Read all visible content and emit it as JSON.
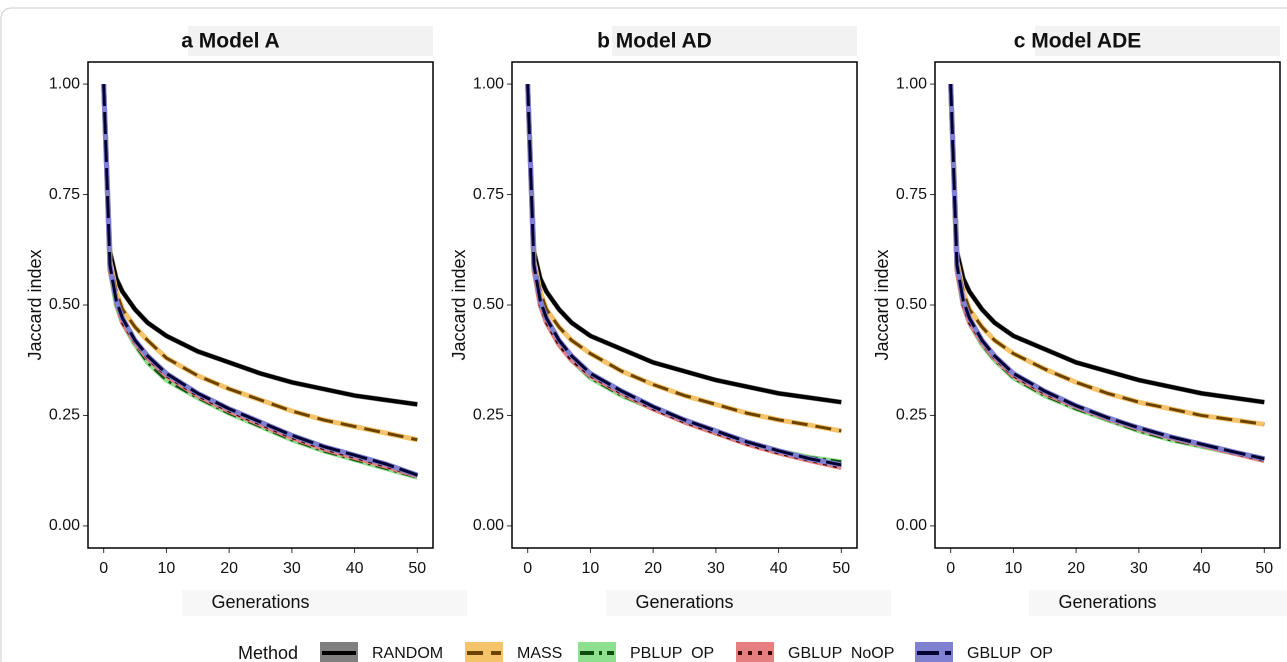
{
  "legend_title": "Method",
  "chart_data": [
    {
      "type": "line",
      "title": "a  Model A",
      "xlabel": "Generations",
      "ylabel": "Jaccard index",
      "x": [
        0,
        1,
        2,
        3,
        5,
        7,
        10,
        15,
        20,
        25,
        30,
        35,
        40,
        45,
        50
      ],
      "xlim": [
        -2.5,
        52.5
      ],
      "ylim": [
        -0.05,
        1.05
      ],
      "xticks": [
        0,
        10,
        20,
        30,
        40,
        50
      ],
      "yticks": [
        {
          "value": 0,
          "label": "0.00"
        },
        {
          "value": 0.25,
          "label": "0.25"
        },
        {
          "value": 0.5,
          "label": "0.50"
        },
        {
          "value": 0.75,
          "label": "0.75"
        },
        {
          "value": 1,
          "label": "1.00"
        }
      ],
      "series": [
        {
          "name": "RANDOM",
          "color": "#808080",
          "line_color": "#000000",
          "dash": "solid",
          "values": [
            1.0,
            0.62,
            0.56,
            0.53,
            0.49,
            0.46,
            0.43,
            0.395,
            0.37,
            0.345,
            0.325,
            0.31,
            0.295,
            0.285,
            0.275
          ]
        },
        {
          "name": "MASS",
          "color": "#f5c46a",
          "line_color": "#6b4200",
          "dash": "dashed",
          "values": [
            1.0,
            0.6,
            0.53,
            0.49,
            0.45,
            0.42,
            0.38,
            0.34,
            0.31,
            0.285,
            0.26,
            0.24,
            0.225,
            0.21,
            0.195
          ]
        },
        {
          "name": "PBLUP  OP",
          "color": "#8ee08e",
          "line_color": "#0d4d0d",
          "dash": "dashdot",
          "values": [
            1.0,
            0.58,
            0.5,
            0.46,
            0.41,
            0.37,
            0.33,
            0.29,
            0.255,
            0.225,
            0.195,
            0.17,
            0.15,
            0.13,
            0.11
          ]
        },
        {
          "name": "GBLUP  NoOP",
          "color": "#e57f7f",
          "line_color": "#3a0000",
          "dash": "dotted",
          "values": [
            1.0,
            0.58,
            0.51,
            0.46,
            0.415,
            0.38,
            0.34,
            0.295,
            0.26,
            0.23,
            0.2,
            0.175,
            0.155,
            0.135,
            0.113
          ]
        },
        {
          "name": "GBLUP  OP",
          "color": "#8080d0",
          "line_color": "#000033",
          "dash": "longdash",
          "values": [
            1.0,
            0.59,
            0.51,
            0.47,
            0.42,
            0.385,
            0.345,
            0.3,
            0.265,
            0.235,
            0.205,
            0.18,
            0.16,
            0.14,
            0.115
          ]
        }
      ]
    },
    {
      "type": "line",
      "title": "b  Model AD",
      "xlabel": "Generations",
      "ylabel": "Jaccard index",
      "x": [
        0,
        1,
        2,
        3,
        5,
        7,
        10,
        15,
        20,
        25,
        30,
        35,
        40,
        45,
        50
      ],
      "xlim": [
        -2.5,
        52.5
      ],
      "ylim": [
        -0.05,
        1.05
      ],
      "xticks": [
        0,
        10,
        20,
        30,
        40,
        50
      ],
      "yticks": [
        {
          "value": 0,
          "label": "0.00"
        },
        {
          "value": 0.25,
          "label": "0.25"
        },
        {
          "value": 0.5,
          "label": "0.50"
        },
        {
          "value": 0.75,
          "label": "0.75"
        },
        {
          "value": 1,
          "label": "1.00"
        }
      ],
      "series": [
        {
          "name": "RANDOM",
          "color": "#808080",
          "line_color": "#000000",
          "dash": "solid",
          "values": [
            1.0,
            0.62,
            0.56,
            0.53,
            0.49,
            0.46,
            0.43,
            0.4,
            0.37,
            0.35,
            0.33,
            0.315,
            0.3,
            0.29,
            0.28
          ]
        },
        {
          "name": "MASS",
          "color": "#f5c46a",
          "line_color": "#6b4200",
          "dash": "dashed",
          "values": [
            1.0,
            0.6,
            0.53,
            0.49,
            0.45,
            0.42,
            0.39,
            0.35,
            0.32,
            0.295,
            0.275,
            0.255,
            0.24,
            0.228,
            0.215
          ]
        },
        {
          "name": "PBLUP  OP",
          "color": "#8ee08e",
          "line_color": "#0d4d0d",
          "dash": "dashdot",
          "values": [
            1.0,
            0.58,
            0.5,
            0.46,
            0.41,
            0.375,
            0.335,
            0.295,
            0.265,
            0.235,
            0.21,
            0.19,
            0.17,
            0.155,
            0.145
          ]
        },
        {
          "name": "GBLUP  NoOP",
          "color": "#e57f7f",
          "line_color": "#3a0000",
          "dash": "dotted",
          "values": [
            1.0,
            0.58,
            0.5,
            0.46,
            0.41,
            0.375,
            0.34,
            0.3,
            0.265,
            0.235,
            0.21,
            0.185,
            0.165,
            0.148,
            0.132
          ]
        },
        {
          "name": "GBLUP  OP",
          "color": "#8080d0",
          "line_color": "#000033",
          "dash": "longdash",
          "values": [
            1.0,
            0.59,
            0.51,
            0.47,
            0.42,
            0.385,
            0.345,
            0.305,
            0.27,
            0.24,
            0.215,
            0.19,
            0.17,
            0.152,
            0.138
          ]
        }
      ]
    },
    {
      "type": "line",
      "title": "c  Model ADE",
      "xlabel": "Generations",
      "ylabel": "Jaccard index",
      "x": [
        0,
        1,
        2,
        3,
        5,
        7,
        10,
        15,
        20,
        25,
        30,
        35,
        40,
        45,
        50
      ],
      "xlim": [
        -2.5,
        52.5
      ],
      "ylim": [
        -0.05,
        1.05
      ],
      "xticks": [
        0,
        10,
        20,
        30,
        40,
        50
      ],
      "yticks": [
        {
          "value": 0,
          "label": "0.00"
        },
        {
          "value": 0.25,
          "label": "0.25"
        },
        {
          "value": 0.5,
          "label": "0.50"
        },
        {
          "value": 0.75,
          "label": "0.75"
        },
        {
          "value": 1,
          "label": "1.00"
        }
      ],
      "series": [
        {
          "name": "RANDOM",
          "color": "#808080",
          "line_color": "#000000",
          "dash": "solid",
          "values": [
            1.0,
            0.62,
            0.56,
            0.53,
            0.49,
            0.46,
            0.43,
            0.4,
            0.37,
            0.35,
            0.33,
            0.315,
            0.3,
            0.29,
            0.28
          ]
        },
        {
          "name": "MASS",
          "color": "#f5c46a",
          "line_color": "#6b4200",
          "dash": "dashed",
          "values": [
            1.0,
            0.6,
            0.53,
            0.49,
            0.45,
            0.42,
            0.39,
            0.355,
            0.325,
            0.3,
            0.28,
            0.265,
            0.25,
            0.24,
            0.23
          ]
        },
        {
          "name": "PBLUP  OP",
          "color": "#8ee08e",
          "line_color": "#0d4d0d",
          "dash": "dashdot",
          "values": [
            1.0,
            0.58,
            0.5,
            0.46,
            0.41,
            0.375,
            0.335,
            0.295,
            0.265,
            0.24,
            0.215,
            0.195,
            0.18,
            0.165,
            0.152
          ]
        },
        {
          "name": "GBLUP  NoOP",
          "color": "#e57f7f",
          "line_color": "#3a0000",
          "dash": "dotted",
          "values": [
            1.0,
            0.58,
            0.5,
            0.46,
            0.415,
            0.38,
            0.34,
            0.3,
            0.27,
            0.243,
            0.22,
            0.2,
            0.183,
            0.165,
            0.148
          ]
        },
        {
          "name": "GBLUP  OP",
          "color": "#8080d0",
          "line_color": "#000033",
          "dash": "longdash",
          "values": [
            1.0,
            0.59,
            0.51,
            0.47,
            0.42,
            0.385,
            0.345,
            0.305,
            0.272,
            0.245,
            0.222,
            0.202,
            0.185,
            0.168,
            0.152
          ]
        }
      ]
    }
  ]
}
